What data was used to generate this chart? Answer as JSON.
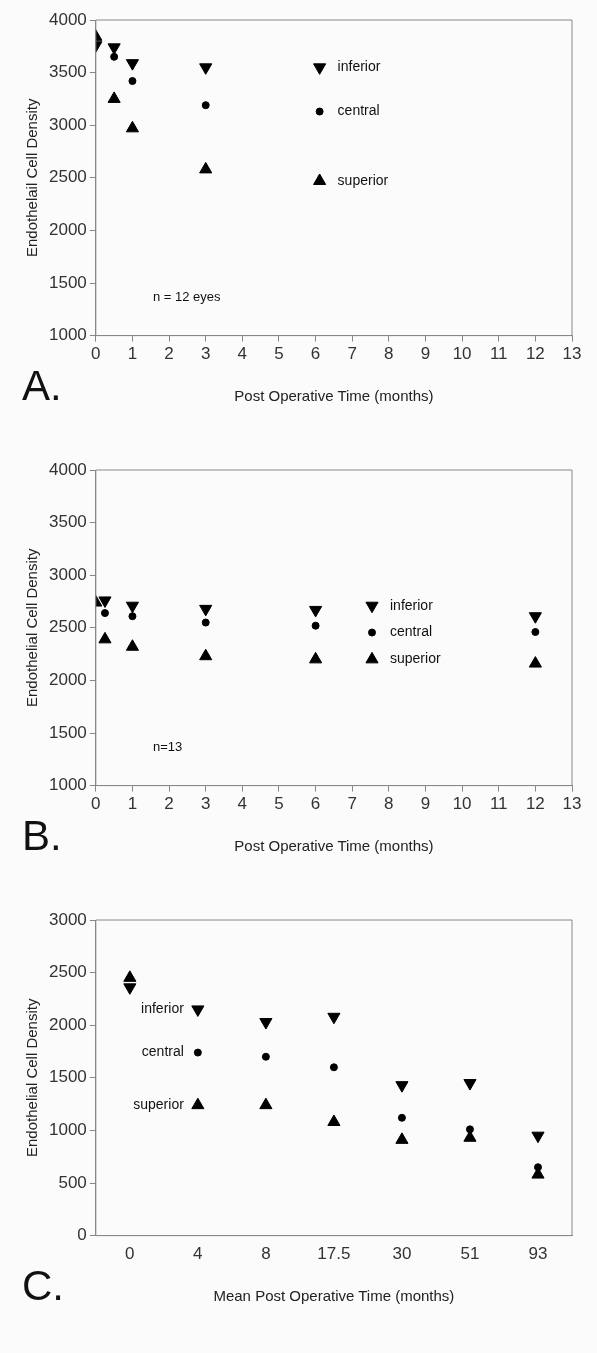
{
  "chart_data": [
    {
      "type": "scatter",
      "xlabel": "Post Operative Time (months)",
      "ylabel": "Endothelail Cell Density",
      "xlim": [
        0,
        13
      ],
      "xticks": [
        0,
        1,
        2,
        3,
        4,
        5,
        6,
        7,
        8,
        9,
        10,
        11,
        12,
        13
      ],
      "ylim": [
        1000,
        4000
      ],
      "yticks": [
        1000,
        1500,
        2000,
        2500,
        3000,
        3500,
        4000
      ],
      "grid": false,
      "legend": "top right",
      "annotations": [
        "A.",
        "n = 12 eyes"
      ],
      "series": [
        {
          "name": "inferior",
          "color": "#000000",
          "x": [
            0,
            0.5,
            1,
            3
          ],
          "values": [
            3760,
            3740,
            3590,
            3550
          ]
        },
        {
          "name": "central",
          "color": "#000000",
          "marker": "circle",
          "x": [
            0.5,
            1,
            3
          ],
          "values": [
            3650,
            3420,
            3190
          ]
        },
        {
          "name": "superior",
          "color": "#000000",
          "marker": "triangle",
          "x": [
            0,
            0.5,
            1,
            3
          ],
          "values": [
            3840,
            3250,
            2970,
            2580
          ]
        }
      ]
    },
    {
      "type": "scatter",
      "xlabel": "Post Operative Time (months)",
      "ylabel": "Endothelial Cell Density",
      "xlim": [
        0,
        13
      ],
      "xticks": [
        0,
        1,
        2,
        3,
        4,
        5,
        6,
        7,
        8,
        9,
        10,
        11,
        12,
        13
      ],
      "ylim": [
        1000,
        4000
      ],
      "yticks": [
        1000,
        1500,
        2000,
        2500,
        3000,
        3500,
        4000
      ],
      "grid": false,
      "legend": "right",
      "annotations": [
        "B.",
        "n=13"
      ],
      "series": [
        {
          "name": "inferior",
          "color": "#000000",
          "x": [
            0.25,
            1,
            3,
            6,
            12
          ],
          "values": [
            2760,
            2710,
            2680,
            2670,
            2610
          ]
        },
        {
          "name": "central",
          "color": "#000000",
          "marker": "circle",
          "x": [
            0.25,
            1,
            3,
            6,
            12
          ],
          "values": [
            2640,
            2610,
            2550,
            2520,
            2460
          ]
        },
        {
          "name": "superior",
          "color": "#000000",
          "marker": "triangle",
          "x": [
            0,
            0.25,
            1,
            3,
            6,
            12
          ],
          "values": [
            2740,
            2390,
            2320,
            2230,
            2200,
            2160
          ]
        }
      ]
    },
    {
      "type": "scatter",
      "xlabel": "Mean Post Operative Time (months)",
      "ylabel": "Endothelial Cell Density",
      "categories": [
        "0",
        "4",
        "8",
        "17.5",
        "30",
        "51",
        "93"
      ],
      "ylim": [
        0,
        3000
      ],
      "yticks": [
        0,
        500,
        1000,
        1500,
        2000,
        2500,
        3000
      ],
      "grid": false,
      "legend": false,
      "annotations": [
        "C."
      ],
      "series": [
        {
          "name": "inferior",
          "color": "#000000",
          "values": [
            2360,
            2150,
            2030,
            2080,
            1430,
            1450,
            950
          ]
        },
        {
          "name": "central",
          "color": "#000000",
          "marker": "circle",
          "values": [
            null,
            1740,
            1700,
            1600,
            1120,
            1010,
            650
          ]
        },
        {
          "name": "superior",
          "color": "#000000",
          "marker": "triangle",
          "values": [
            2450,
            1240,
            1240,
            1080,
            910,
            930,
            580
          ]
        }
      ]
    }
  ]
}
